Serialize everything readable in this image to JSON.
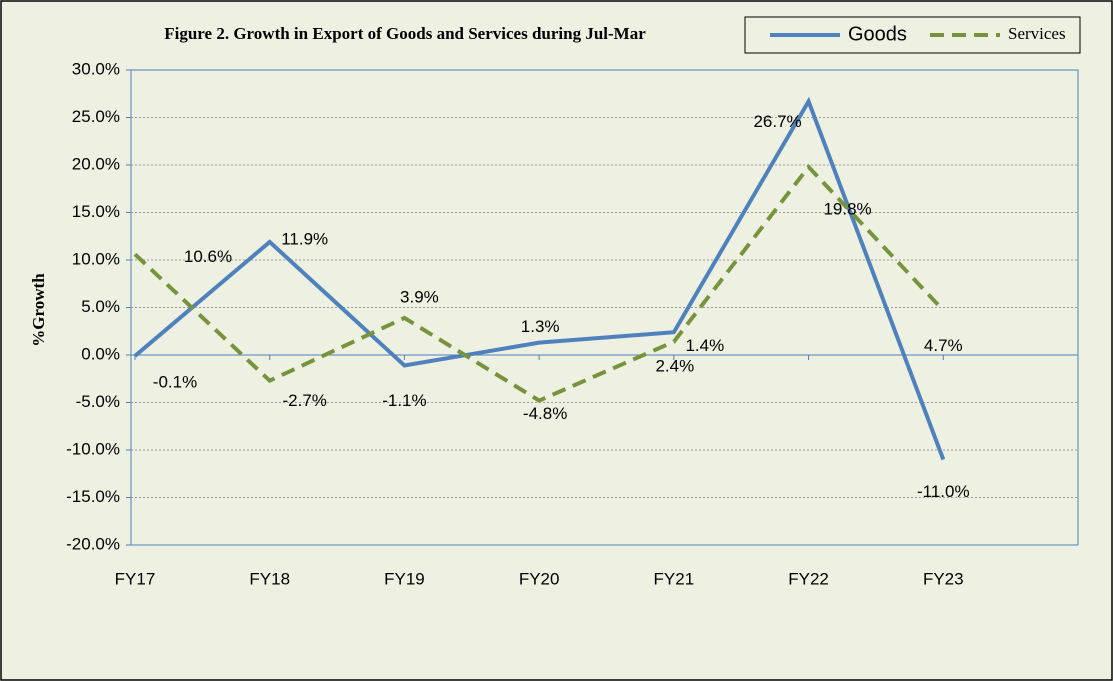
{
  "chart_data": {
    "type": "line",
    "title": "Figure 2. Growth in Export of Goods and Services during Jul-Mar",
    "y_label": "%Growth",
    "categories": [
      "FY17",
      "FY18",
      "FY19",
      "FY20",
      "FY21",
      "FY22",
      "FY23"
    ],
    "series": [
      {
        "name": "Goods",
        "color": "#4f81bd",
        "dash": false,
        "values": [
          -0.1,
          11.9,
          -1.1,
          1.3,
          2.4,
          26.7,
          -11.0
        ],
        "value_labels": [
          "-0.1%",
          "11.9%",
          "-1.1%",
          "1.3%",
          "2.4%",
          "26.7%",
          "-11.0%"
        ]
      },
      {
        "name": "Services",
        "color": "#77933c",
        "dash": true,
        "values": [
          10.6,
          -2.7,
          3.9,
          -4.8,
          1.4,
          19.8,
          4.7
        ],
        "value_labels": [
          "10.6%",
          "-2.7%",
          "3.9%",
          "-4.8%",
          "1.4%",
          "19.8%",
          "4.7%"
        ]
      }
    ],
    "ylim": [
      -20,
      30
    ],
    "yticks": [
      {
        "value": -20,
        "label": "-20.0%"
      },
      {
        "value": -15,
        "label": "-15.0%"
      },
      {
        "value": -10,
        "label": "-10.0%"
      },
      {
        "value": -5,
        "label": "-5.0%"
      },
      {
        "value": 0,
        "label": "0.0%"
      },
      {
        "value": 5,
        "label": "5.0%"
      },
      {
        "value": 10,
        "label": "10.0%"
      },
      {
        "value": 15,
        "label": "15.0%"
      },
      {
        "value": 20,
        "label": "20.0%"
      },
      {
        "value": 25,
        "label": "25.0%"
      },
      {
        "value": 30,
        "label": "30.0%"
      }
    ],
    "grid": true,
    "legend": "top-right"
  }
}
